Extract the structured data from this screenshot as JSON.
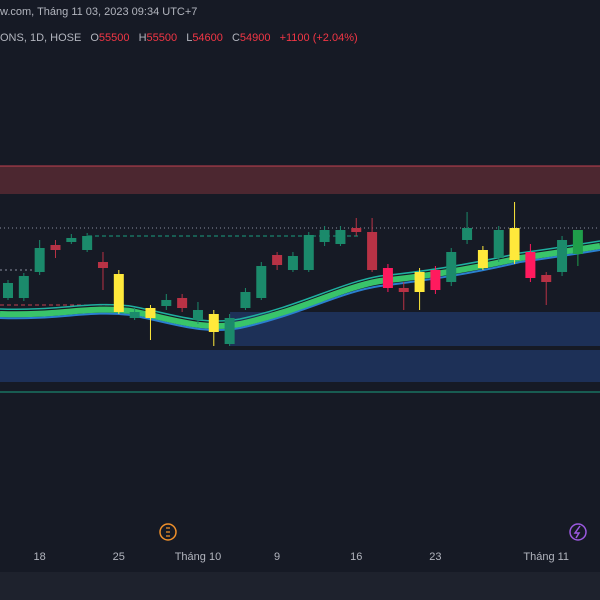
{
  "chart_data": {
    "type": "candlestick",
    "header_line": "w.com, Tháng 11 03, 2023 09:34 UTC+7",
    "symbol_line": "ONS, 1D, HOSE",
    "ohlc_letters": [
      "O",
      "H",
      "L",
      "C"
    ],
    "change": "+1100 (+2.04%)",
    "categories": [
      null,
      null,
      "18",
      null,
      null,
      null,
      null,
      "25",
      null,
      null,
      null,
      null,
      "Tháng 10",
      null,
      null,
      null,
      null,
      "9",
      null,
      null,
      null,
      null,
      "16",
      null,
      null,
      null,
      null,
      "23",
      null,
      null,
      null,
      null,
      null,
      null,
      "Tháng 11",
      null,
      null
    ],
    "open": [
      53800,
      53800,
      54450,
      55125,
      55200,
      55000,
      54700,
      54400,
      53300,
      53550,
      53600,
      53800,
      53250,
      53400,
      52650,
      53550,
      53800,
      54875,
      54500,
      54500,
      55200,
      55150,
      55550,
      55450,
      54550,
      54050,
      54450,
      54500,
      54200,
      55250,
      55000,
      54800,
      55550,
      54950,
      54375,
      54450,
      55500
    ],
    "high": [
      54250,
      54425,
      55250,
      55250,
      55400,
      55425,
      54950,
      54500,
      53550,
      53625,
      53900,
      53900,
      53700,
      53500,
      53400,
      54050,
      54700,
      54950,
      54950,
      55450,
      55600,
      55600,
      55800,
      55800,
      54650,
      54200,
      54550,
      54600,
      55050,
      55950,
      55100,
      55600,
      56200,
      55150,
      54450,
      55350,
      55500
    ],
    "low": [
      53750,
      53725,
      54375,
      54800,
      55150,
      54950,
      54000,
      53400,
      53250,
      52750,
      53500,
      53450,
      53150,
      52600,
      52600,
      53500,
      53750,
      54500,
      54450,
      54450,
      55100,
      55100,
      55350,
      54450,
      53950,
      53500,
      53500,
      53900,
      54100,
      55150,
      54500,
      54700,
      54650,
      54200,
      53625,
      54350,
      54600
    ],
    "close": [
      54175,
      54350,
      55050,
      55000,
      55300,
      55350,
      54550,
      53450,
      53450,
      53300,
      53750,
      53550,
      53500,
      52950,
      53300,
      53950,
      54600,
      54625,
      54850,
      55375,
      55500,
      55500,
      55450,
      54500,
      54050,
      53950,
      53950,
      54000,
      54950,
      55550,
      54550,
      55500,
      54750,
      54300,
      54200,
      55250,
      54900
    ],
    "colors": [
      "#1b8a6b",
      "#1b8a6b",
      "#1b8a6b",
      "#b83245",
      "#1b8a6b",
      "#1b8a6b",
      "#b83245",
      "#ffe93b",
      "#1b8a6b",
      "#ffe93b",
      "#1b8a6b",
      "#b83245",
      "#1b8a6b",
      "#ffe93b",
      "#1b8a6b",
      "#1b8a6b",
      "#1b8a6b",
      "#b83245",
      "#1b8a6b",
      "#1b8a6b",
      "#1b8a6b",
      "#1b8a6b",
      "#b83245",
      "#b83245",
      "#ff1a5e",
      "#b83245",
      "#ffe93b",
      "#ff1a5e",
      "#1b8a6b",
      "#1b8a6b",
      "#ffe93b",
      "#1b8a6b",
      "#ffe93b",
      "#ff1a5e",
      "#b83245",
      "#1b8a6b",
      "#1f9e4a"
    ],
    "ylim": [
      47750,
      61250
    ]
  }
}
